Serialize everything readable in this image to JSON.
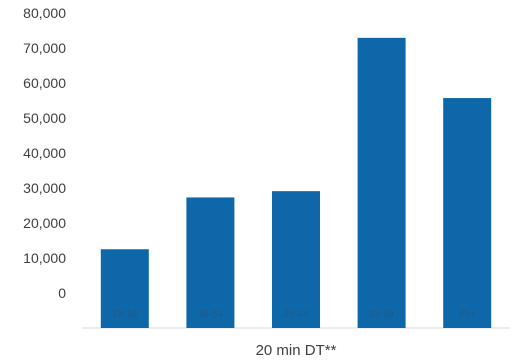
{
  "chart_data": {
    "type": "bar",
    "categories": [
      "18-34",
      "35-54",
      "35-44",
      "45-64",
      "65+"
    ],
    "values": [
      12500,
      27300,
      29100,
      72900,
      55700
    ],
    "xlabel": "20 min DT**",
    "ylabel": "",
    "ylim": [
      0,
      80000
    ],
    "yticks": [
      0,
      10000,
      20000,
      30000,
      40000,
      50000,
      60000,
      70000,
      80000
    ],
    "ytick_labels": [
      "0",
      "10,000",
      "20,000",
      "30,000",
      "40,000",
      "50,000",
      "60,000",
      "70,000",
      "80,000"
    ],
    "grid": false,
    "legend": "none",
    "colors": {
      "bar": "#0E67A8",
      "category_label": "#1F5A8A",
      "axis": "#D9D9D9",
      "text": "#404040"
    }
  }
}
